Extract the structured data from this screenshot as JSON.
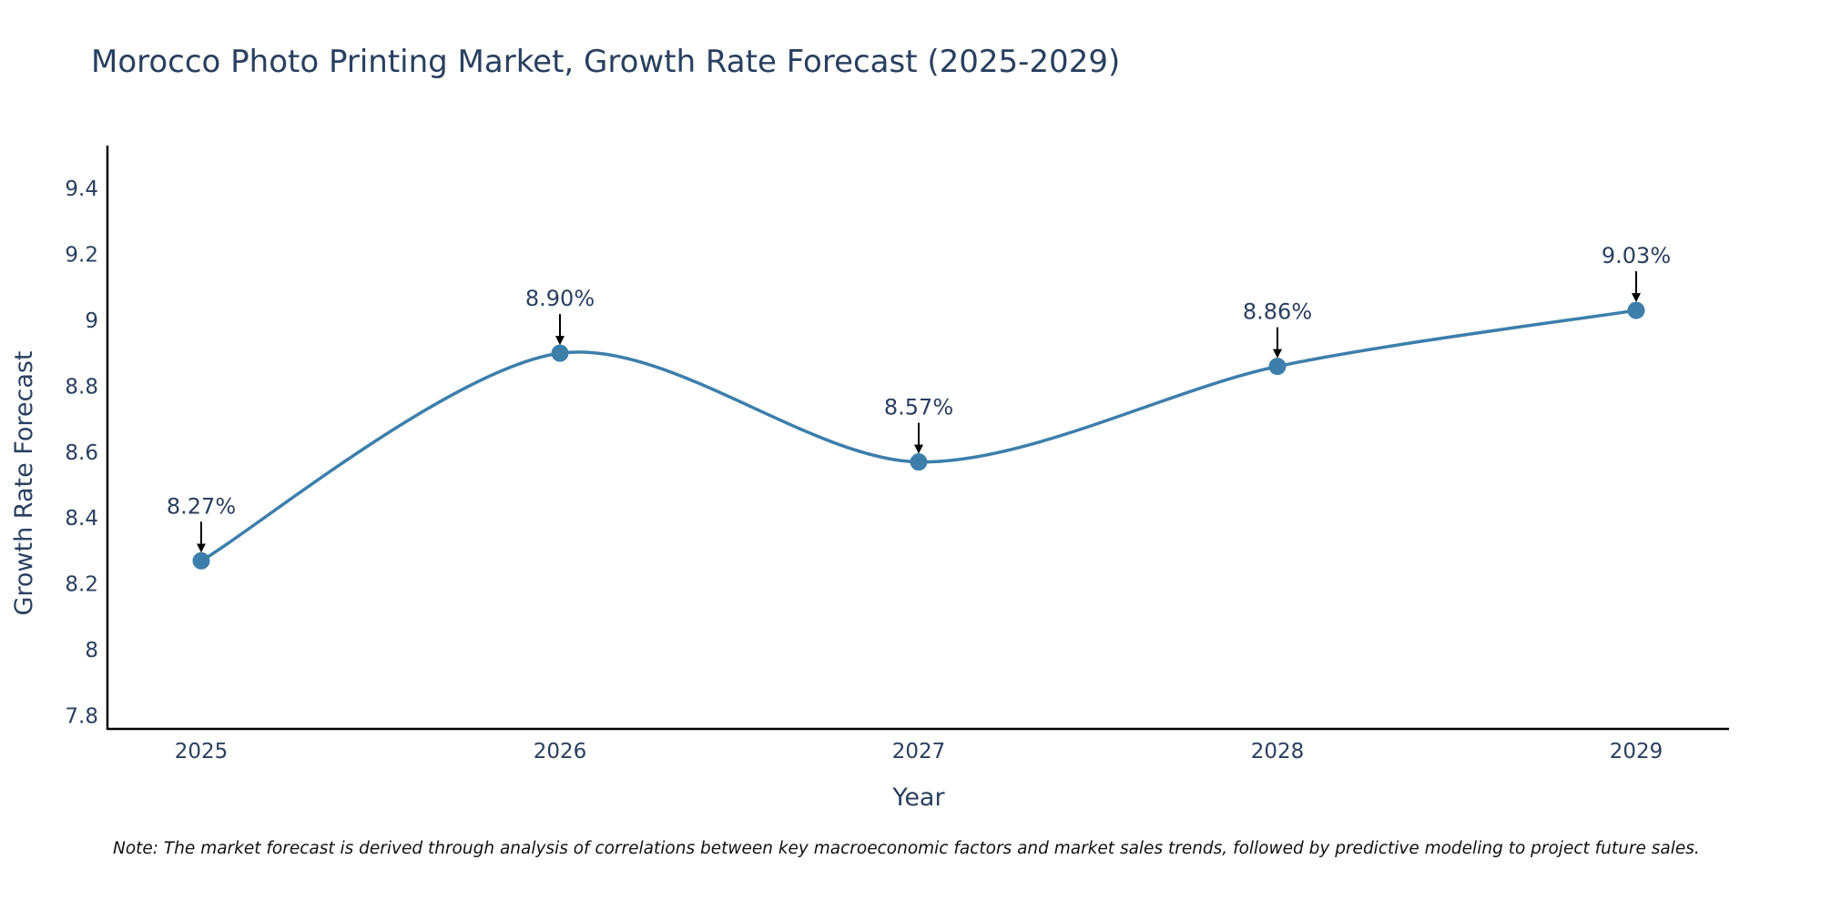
{
  "chart_data": {
    "type": "line",
    "title": "Morocco Photo Printing Market, Growth Rate Forecast (2025-2029)",
    "xlabel": "Year",
    "ylabel": "Growth Rate Forecast",
    "categories": [
      "2025",
      "2026",
      "2027",
      "2028",
      "2029"
    ],
    "series": [
      {
        "name": "Growth Rate Forecast",
        "values": [
          8.27,
          8.9,
          8.57,
          8.86,
          9.03
        ],
        "color": "#3d7eab"
      }
    ],
    "data_labels": [
      "8.27%",
      "8.90%",
      "8.57%",
      "8.86%",
      "9.03%"
    ],
    "ylim": [
      7.76,
      9.53
    ],
    "yticks": [
      7.8,
      8,
      8.2,
      8.4,
      8.6,
      8.8,
      9,
      9.2,
      9.4
    ],
    "ytick_labels": [
      "7.8",
      "8",
      "8.2",
      "8.4",
      "8.6",
      "8.8",
      "9",
      "9.2",
      "9.4"
    ],
    "grid": false,
    "line_shape": "spline",
    "annotation_arrows": true,
    "note": "Note: The market forecast is derived through analysis of correlations between key macroeconomic factors and market sales trends, followed by predictive modeling to project future sales."
  }
}
